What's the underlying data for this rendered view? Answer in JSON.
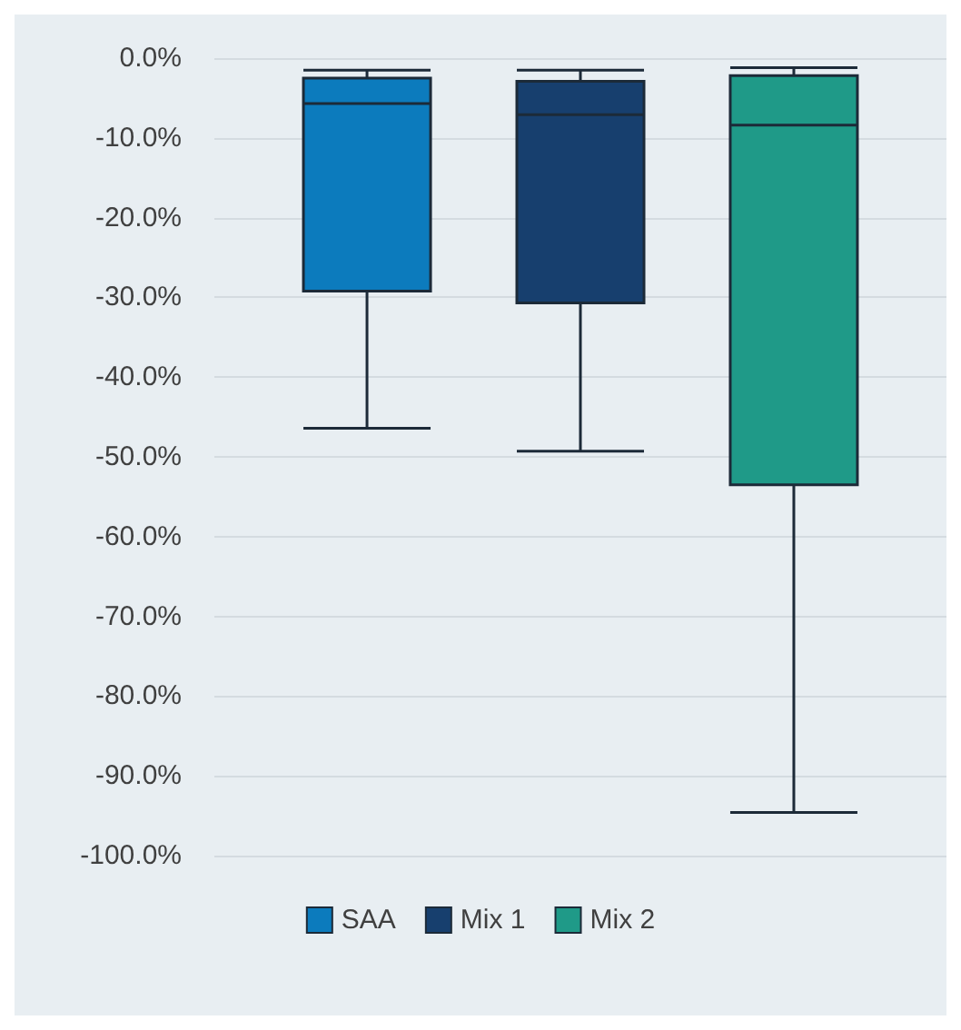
{
  "chart_data": {
    "type": "box",
    "categories": [
      null
    ],
    "series": [
      {
        "name": "SAA",
        "color": "#0c7bbd",
        "boxes": [
          {
            "low": -46.4,
            "q1": -29.2,
            "median": -5.7,
            "q3": -2.5,
            "high": -1.5
          }
        ]
      },
      {
        "name": "Mix 1",
        "color": "#173f6e",
        "boxes": [
          {
            "low": -49.3,
            "q1": -30.7,
            "median": -7.1,
            "q3": -2.9,
            "high": -1.5
          }
        ]
      },
      {
        "name": "Mix 2",
        "color": "#1f9a88",
        "boxes": [
          {
            "low": -94.6,
            "q1": -53.5,
            "median": -8.4,
            "q3": -2.2,
            "high": -1.2
          }
        ]
      }
    ],
    "ylim": [
      -100,
      0
    ],
    "yticks": [
      {
        "value": 0,
        "label": "0.0%"
      },
      {
        "value": -10,
        "label": "-10.0%"
      },
      {
        "value": -20,
        "label": "-20.0%"
      },
      {
        "value": -30,
        "label": "-30.0%"
      },
      {
        "value": -40,
        "label": "-40.0%"
      },
      {
        "value": -50,
        "label": "-50.0%"
      },
      {
        "value": -60,
        "label": "-60.0%"
      },
      {
        "value": -70,
        "label": "-70.0%"
      },
      {
        "value": -80,
        "label": "-80.0%"
      },
      {
        "value": -90,
        "label": "-90.0%"
      },
      {
        "value": -100,
        "label": "-100.0%"
      }
    ],
    "grid": "y",
    "legend": "bottom"
  }
}
